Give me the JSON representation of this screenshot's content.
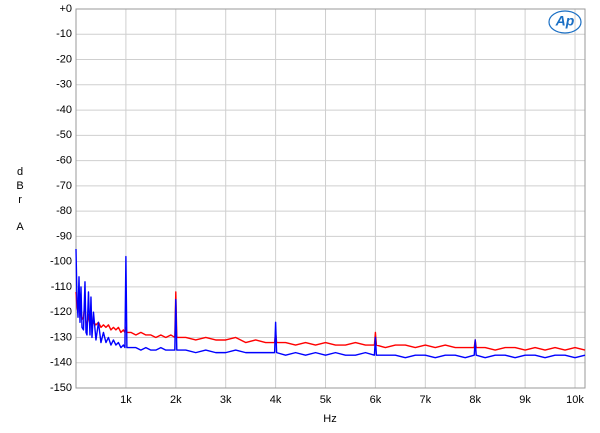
{
  "chart_data": {
    "type": "line",
    "logo": "Ap",
    "x_label": "Hz",
    "y_label": "dBr",
    "y_label_unit": "A",
    "xlim": [
      0,
      10200
    ],
    "ylim": [
      -150,
      0
    ],
    "xticks": [
      {
        "value": 1000,
        "label": "1k"
      },
      {
        "value": 2000,
        "label": "2k"
      },
      {
        "value": 3000,
        "label": "3k"
      },
      {
        "value": 4000,
        "label": "4k"
      },
      {
        "value": 5000,
        "label": "5k"
      },
      {
        "value": 6000,
        "label": "6k"
      },
      {
        "value": 7000,
        "label": "7k"
      },
      {
        "value": 8000,
        "label": "8k"
      },
      {
        "value": 9000,
        "label": "9k"
      },
      {
        "value": 10000,
        "label": "10k"
      }
    ],
    "yticks": [
      {
        "value": 0,
        "label": "+0"
      },
      -10,
      -20,
      -30,
      -40,
      -50,
      -60,
      -70,
      -80,
      -90,
      -100,
      -110,
      -120,
      -130,
      -140,
      -150
    ],
    "grid": true,
    "x": [
      0,
      20,
      40,
      60,
      80,
      100,
      120,
      150,
      180,
      200,
      220,
      250,
      280,
      300,
      320,
      350,
      400,
      450,
      500,
      550,
      600,
      650,
      700,
      750,
      800,
      850,
      900,
      950,
      980,
      1000,
      1020,
      1100,
      1200,
      1300,
      1400,
      1500,
      1600,
      1700,
      1800,
      1900,
      1980,
      2000,
      2020,
      2200,
      2400,
      2600,
      2800,
      3000,
      3200,
      3400,
      3600,
      3800,
      3980,
      4000,
      4020,
      4200,
      4400,
      4600,
      4800,
      5000,
      5200,
      5400,
      5600,
      5800,
      5980,
      6000,
      6020,
      6200,
      6400,
      6600,
      6800,
      7000,
      7200,
      7400,
      7600,
      7800,
      7980,
      8000,
      8020,
      8200,
      8400,
      8600,
      8800,
      9000,
      9200,
      9400,
      9600,
      9800,
      10000,
      10200
    ],
    "series": [
      {
        "color": "#ff0000",
        "values": [
          -112,
          -118,
          -120,
          -112,
          -122,
          -118,
          -123,
          -122,
          -116,
          -124,
          -125,
          -121,
          -125,
          -119,
          -126,
          -124,
          -125,
          -124,
          -126,
          -125,
          -126,
          -125,
          -127,
          -126,
          -127,
          -126,
          -128,
          -127,
          -128,
          -126,
          -128,
          -128,
          -129,
          -128,
          -129,
          -129,
          -130,
          -129,
          -130,
          -129,
          -130,
          -112,
          -130,
          -130,
          -131,
          -130,
          -131,
          -131,
          -130,
          -132,
          -131,
          -132,
          -132,
          -128,
          -132,
          -132,
          -133,
          -132,
          -133,
          -132,
          -133,
          -133,
          -132,
          -133,
          -133,
          -128,
          -133,
          -134,
          -133,
          -133,
          -134,
          -133,
          -134,
          -133,
          -134,
          -134,
          -134,
          -131,
          -134,
          -134,
          -135,
          -134,
          -134,
          -135,
          -134,
          -135,
          -134,
          -135,
          -134,
          -135
        ]
      },
      {
        "color": "#0000ff",
        "values": [
          -95,
          -115,
          -122,
          -106,
          -124,
          -110,
          -126,
          -127,
          -108,
          -128,
          -129,
          -112,
          -129,
          -114,
          -130,
          -120,
          -131,
          -124,
          -132,
          -128,
          -132,
          -130,
          -133,
          -131,
          -133,
          -132,
          -134,
          -133,
          -134,
          -98,
          -134,
          -134,
          -134,
          -135,
          -134,
          -135,
          -135,
          -134,
          -135,
          -135,
          -135,
          -115,
          -135,
          -135,
          -136,
          -135,
          -136,
          -136,
          -135,
          -136,
          -136,
          -136,
          -136,
          -124,
          -136,
          -137,
          -136,
          -137,
          -136,
          -137,
          -136,
          -137,
          -137,
          -136,
          -137,
          -130,
          -137,
          -137,
          -137,
          -138,
          -137,
          -137,
          -138,
          -137,
          -137,
          -138,
          -137,
          -131,
          -137,
          -138,
          -137,
          -137,
          -138,
          -137,
          -137,
          -138,
          -137,
          -137,
          -138,
          -137
        ]
      }
    ]
  }
}
